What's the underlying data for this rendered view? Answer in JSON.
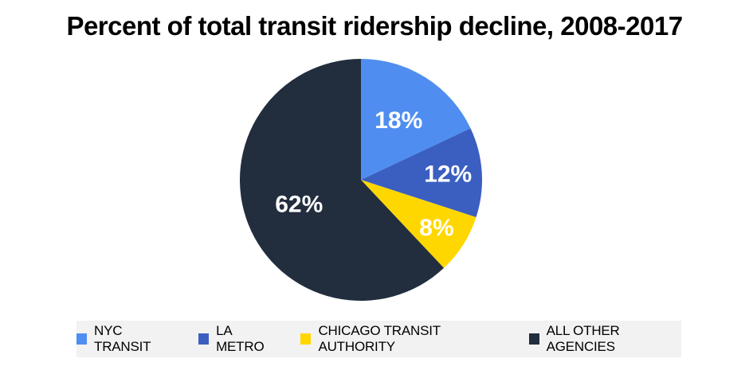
{
  "chart_data": {
    "type": "pie",
    "title": "Percent of total transit ridership decline, 2008-2017",
    "categories": [
      "NYC TRANSIT",
      "LA METRO",
      "CHICAGO TRANSIT AUTHORITY",
      "ALL OTHER AGENCIES"
    ],
    "values": [
      18,
      12,
      8,
      62
    ],
    "value_labels": [
      "18%",
      "12%",
      "8%",
      "62%"
    ],
    "colors": [
      "#4f8ef0",
      "#3a5fc0",
      "#ffd700",
      "#222d3e"
    ],
    "start_angle": "12 o'clock",
    "direction": "clockwise",
    "legend_position": "bottom"
  }
}
